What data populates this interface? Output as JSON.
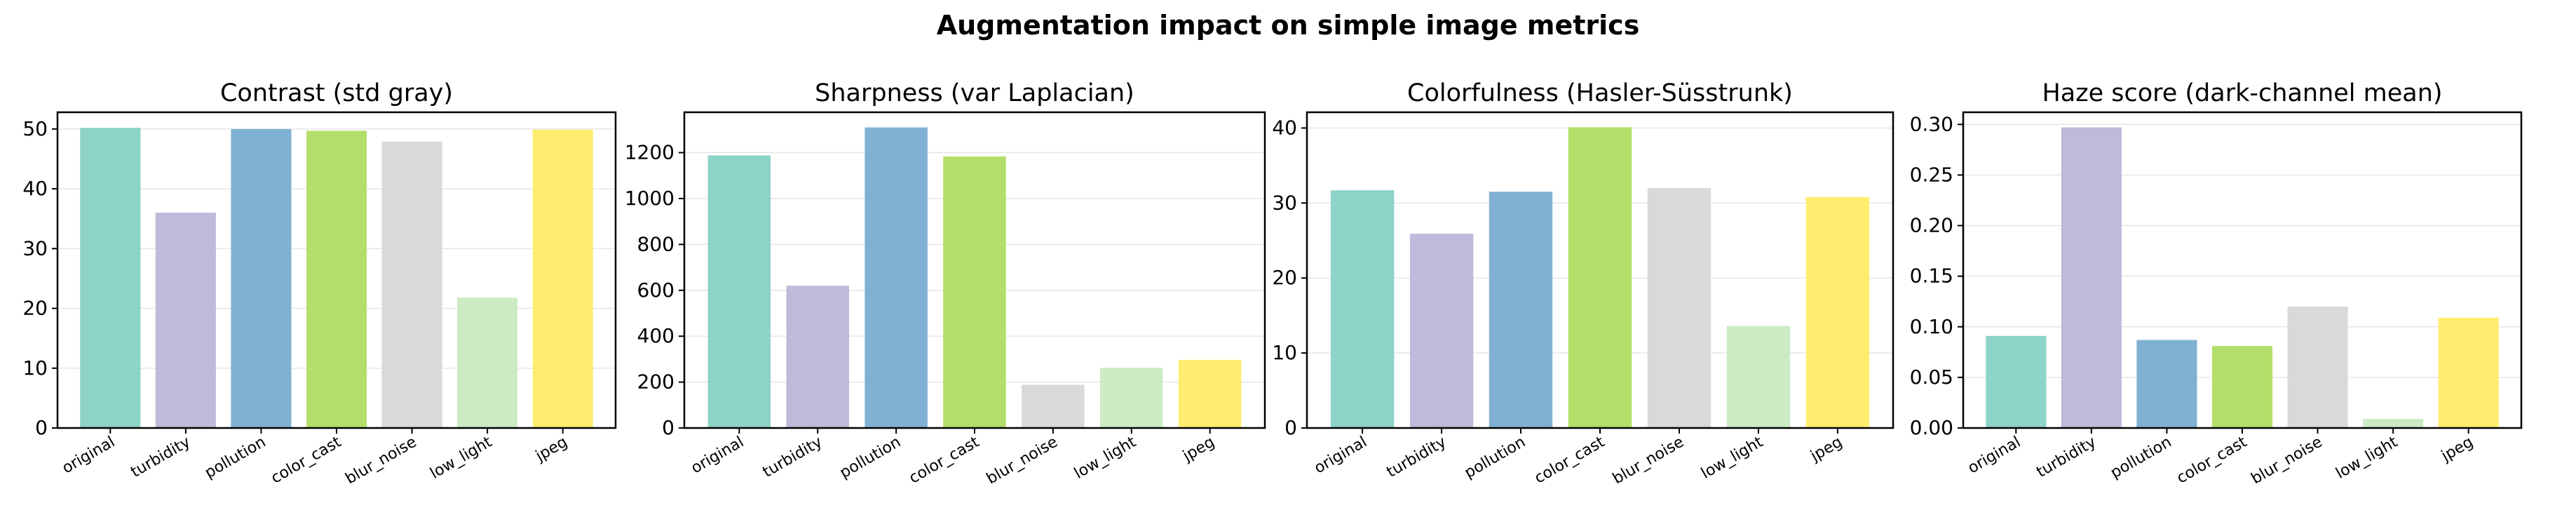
{
  "figure": {
    "title": "Augmentation impact on simple image metrics"
  },
  "chart_data": [
    {
      "type": "bar",
      "title": "Contrast (std gray)",
      "categories": [
        "original",
        "turbidity",
        "pollution",
        "color_cast",
        "blur_noise",
        "low_light",
        "jpeg"
      ],
      "values": [
        50.2,
        36.0,
        50.0,
        49.7,
        47.9,
        21.8,
        49.9
      ],
      "ylim": [
        0,
        52.8
      ],
      "yticks": [
        0,
        10,
        20,
        30,
        40,
        50
      ],
      "tick_decimals": 0,
      "grid": "y"
    },
    {
      "type": "bar",
      "title": "Sharpness (var Laplacian)",
      "categories": [
        "original",
        "turbidity",
        "pollution",
        "color_cast",
        "blur_noise",
        "low_light",
        "jpeg"
      ],
      "values": [
        1188,
        620,
        1310,
        1183,
        188,
        262,
        297
      ],
      "ylim": [
        0,
        1376
      ],
      "yticks": [
        0,
        200,
        400,
        600,
        800,
        1000,
        1200
      ],
      "tick_decimals": 0,
      "grid": "y"
    },
    {
      "type": "bar",
      "title": "Colorfulness (Hasler-Süsstrunk)",
      "categories": [
        "original",
        "turbidity",
        "pollution",
        "color_cast",
        "blur_noise",
        "low_light",
        "jpeg"
      ],
      "values": [
        31.7,
        25.9,
        31.5,
        40.1,
        32.0,
        13.6,
        30.8
      ],
      "ylim": [
        0,
        42.1
      ],
      "yticks": [
        0,
        10,
        20,
        30,
        40
      ],
      "tick_decimals": 0,
      "grid": "y"
    },
    {
      "type": "bar",
      "title": "Haze score (dark-channel mean)",
      "categories": [
        "original",
        "turbidity",
        "pollution",
        "color_cast",
        "blur_noise",
        "low_light",
        "jpeg"
      ],
      "values": [
        0.091,
        0.297,
        0.087,
        0.081,
        0.12,
        0.009,
        0.109
      ],
      "ylim": [
        0,
        0.312
      ],
      "yticks": [
        0.0,
        0.05,
        0.1,
        0.15,
        0.2,
        0.25,
        0.3
      ],
      "tick_decimals": 2,
      "grid": "y"
    }
  ],
  "colors": [
    "#8dd3c7",
    "#bebada",
    "#80b1d3",
    "#b3de69",
    "#d9d9d9",
    "#ccebc5",
    "#ffed6f"
  ]
}
